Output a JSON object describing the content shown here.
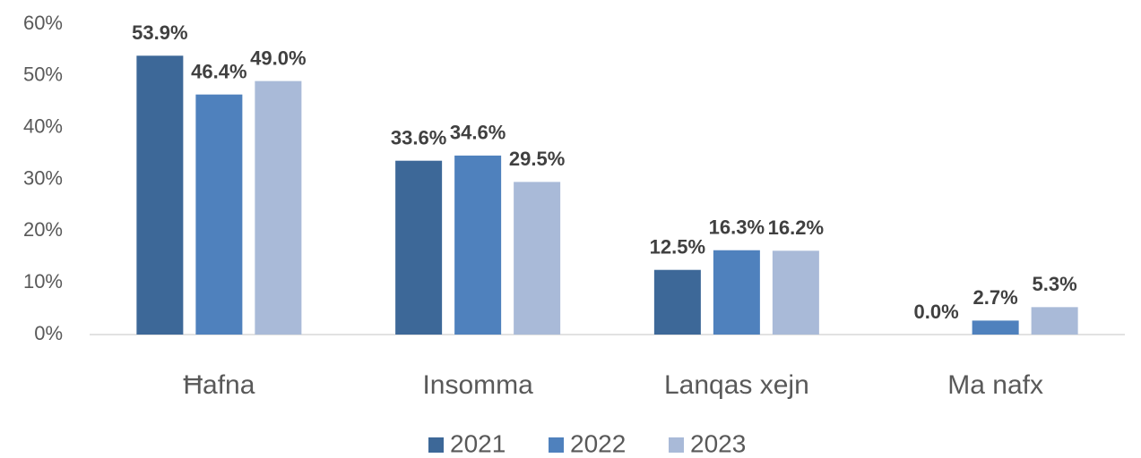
{
  "chart_data": {
    "type": "bar",
    "categories": [
      "Ħafna",
      "Insomma",
      "Lanqas xejn",
      "Ma nafx"
    ],
    "series": [
      {
        "name": "2021",
        "color": "#3d6898",
        "values": [
          53.9,
          33.6,
          12.5,
          0
        ],
        "value_labels": [
          "53.9%",
          "33.6%",
          "12.5%",
          "0.0%"
        ]
      },
      {
        "name": "2022",
        "color": "#4f81bd",
        "values": [
          46.4,
          34.6,
          16.3,
          2.7
        ],
        "value_labels": [
          "46.4%",
          "34.6%",
          "16.3%",
          "2.7%"
        ]
      },
      {
        "name": "2023",
        "color": "#a9bad8",
        "values": [
          49.0,
          29.5,
          16.2,
          5.3
        ],
        "value_labels": [
          "49.0%",
          "29.5%",
          "16.2%",
          "5.3%"
        ]
      }
    ],
    "ylim": [
      0,
      60
    ],
    "yticks": [
      {
        "value": 0,
        "label": "0%"
      },
      {
        "value": 10,
        "label": "10%"
      },
      {
        "value": 20,
        "label": "20%"
      },
      {
        "value": 30,
        "label": "30%"
      },
      {
        "value": 40,
        "label": "40%"
      },
      {
        "value": 50,
        "label": "50%"
      },
      {
        "value": 60,
        "label": "60%"
      }
    ],
    "grid": false,
    "legend": "bottom"
  }
}
